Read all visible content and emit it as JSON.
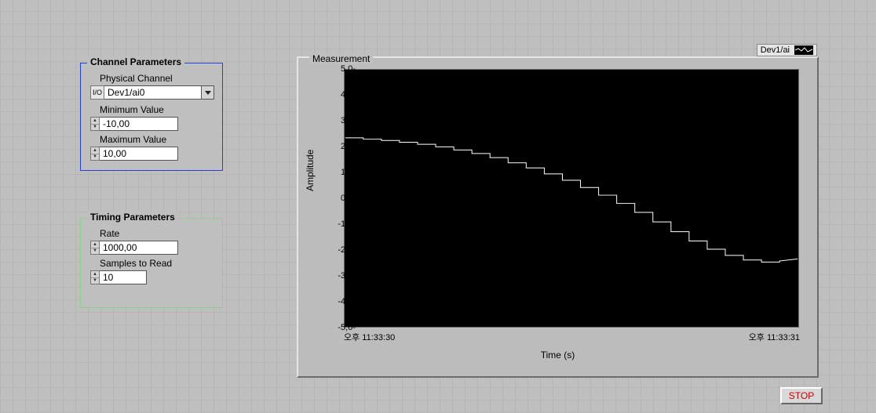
{
  "channel_panel": {
    "title": "Channel Parameters",
    "physical_channel_label": "Physical Channel",
    "physical_channel_value": "Dev1/ai0",
    "io_glyph": "I/O",
    "min_label": "Minimum Value",
    "min_value": "-10,00",
    "max_label": "Maximum Value",
    "max_value": "10,00"
  },
  "timing_panel": {
    "title": "Timing Parameters",
    "rate_label": "Rate",
    "rate_value": "1000,00",
    "samples_label": "Samples to Read",
    "samples_value": "10"
  },
  "graph": {
    "title": "Measurement",
    "legend_label": "Dev1/ai",
    "ylabel": "Amplitude",
    "xlabel": "Time (s)",
    "xtick_start": "오후 11:33:30",
    "xtick_end": "오후 11:33:31",
    "background_color": "#000000",
    "line_color": "#ffffff",
    "line_width": 1,
    "ylim": [
      -5,
      5
    ],
    "ytick_step": 1,
    "yticks": [
      "5,0",
      "4,0",
      "3,0",
      "2,0",
      "1,0",
      "0,0",
      "-1,0",
      "-2,0",
      "-3,0",
      "-4,0",
      "-5,0"
    ],
    "series": [
      [
        0.0,
        2.35
      ],
      [
        0.04,
        2.35
      ],
      [
        0.04,
        2.3
      ],
      [
        0.08,
        2.3
      ],
      [
        0.08,
        2.25
      ],
      [
        0.12,
        2.25
      ],
      [
        0.12,
        2.18
      ],
      [
        0.16,
        2.18
      ],
      [
        0.16,
        2.1
      ],
      [
        0.2,
        2.1
      ],
      [
        0.2,
        2.0
      ],
      [
        0.24,
        2.0
      ],
      [
        0.24,
        1.88
      ],
      [
        0.28,
        1.88
      ],
      [
        0.28,
        1.74
      ],
      [
        0.32,
        1.74
      ],
      [
        0.32,
        1.58
      ],
      [
        0.36,
        1.58
      ],
      [
        0.36,
        1.38
      ],
      [
        0.4,
        1.38
      ],
      [
        0.4,
        1.18
      ],
      [
        0.44,
        1.18
      ],
      [
        0.44,
        0.95
      ],
      [
        0.48,
        0.95
      ],
      [
        0.48,
        0.7
      ],
      [
        0.52,
        0.7
      ],
      [
        0.52,
        0.42
      ],
      [
        0.56,
        0.42
      ],
      [
        0.56,
        0.12
      ],
      [
        0.6,
        0.12
      ],
      [
        0.6,
        -0.2
      ],
      [
        0.64,
        -0.2
      ],
      [
        0.64,
        -0.55
      ],
      [
        0.68,
        -0.55
      ],
      [
        0.68,
        -0.92
      ],
      [
        0.72,
        -0.92
      ],
      [
        0.72,
        -1.3
      ],
      [
        0.76,
        -1.3
      ],
      [
        0.76,
        -1.66
      ],
      [
        0.8,
        -1.66
      ],
      [
        0.8,
        -1.98
      ],
      [
        0.84,
        -1.98
      ],
      [
        0.84,
        -2.22
      ],
      [
        0.88,
        -2.22
      ],
      [
        0.88,
        -2.4
      ],
      [
        0.92,
        -2.4
      ],
      [
        0.92,
        -2.48
      ],
      [
        0.96,
        -2.48
      ],
      [
        0.96,
        -2.44
      ],
      [
        1.0,
        -2.36
      ]
    ]
  },
  "stop_label": "STOP"
}
